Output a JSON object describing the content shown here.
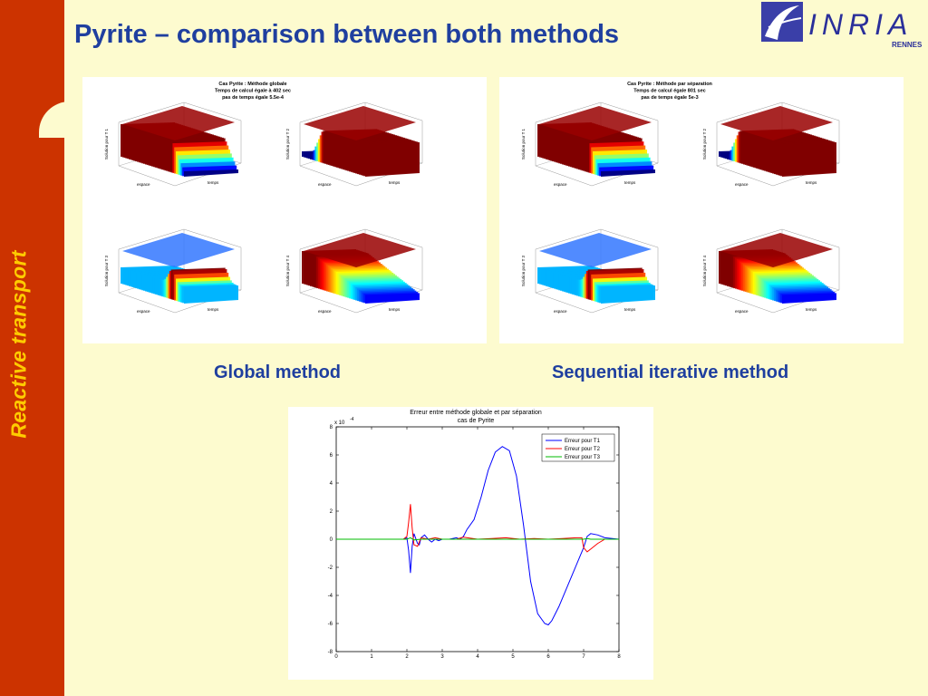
{
  "slide": {
    "title": "Pyrite – comparison between both methods",
    "sidebar_label": "Reactive transport",
    "logo_text": "INRIA",
    "logo_sub": "RENNES"
  },
  "captions": {
    "global": "Global method",
    "sequential": "Sequential iterative method"
  },
  "figures": {
    "global": {
      "title_lines": [
        "Cas Pyrite : Méthode globale",
        "Temps de calcul égale à 402 sec",
        "pas de temps égale 5.5e-4"
      ],
      "subplots": [
        "Solution pour T 1",
        "Solution pour T 2",
        "Solution pour T 3",
        "Solution pour T 4"
      ]
    },
    "sequential": {
      "title_lines": [
        "Cas Pyrite : Méthode par séparation",
        "Temps de calcul égale 801 sec",
        "pas de temps égale 5e-3"
      ],
      "subplots": [
        "Solution pour T 1",
        "Solution pour T 2",
        "Solution pour T 3",
        "Solution pour T 4"
      ]
    },
    "axis_labels": {
      "espace": "espace",
      "temps": "temps"
    }
  },
  "chart_data": {
    "type": "line",
    "title": "Erreur entre méthode globale et par séparation",
    "subtitle": "cas de Pyrite",
    "xlabel": "",
    "ylabel": "",
    "y_multiplier": "x 10",
    "y_exponent": "-4",
    "xlim": [
      0,
      8
    ],
    "ylim": [
      -8,
      8
    ],
    "xticks": [
      0,
      1,
      2,
      3,
      4,
      5,
      6,
      7,
      8
    ],
    "yticks": [
      -8,
      -6,
      -4,
      -2,
      0,
      2,
      4,
      6,
      8
    ],
    "legend_position": "top-right",
    "series": [
      {
        "name": "Erreur pour T1",
        "color": "#0000ff",
        "x": [
          0,
          1.9,
          2.0,
          2.05,
          2.1,
          2.15,
          2.2,
          2.3,
          2.35,
          2.4,
          2.5,
          2.6,
          2.7,
          2.8,
          2.9,
          3.0,
          3.2,
          3.4,
          3.5,
          3.6,
          3.7,
          3.9,
          4.1,
          4.3,
          4.5,
          4.7,
          4.9,
          5.1,
          5.3,
          5.5,
          5.7,
          5.9,
          6.0,
          6.1,
          6.3,
          6.5,
          6.7,
          6.9,
          7.0,
          7.1,
          7.2,
          7.4,
          7.6,
          8.0
        ],
        "y": [
          0,
          0,
          0.1,
          -0.8,
          -2.4,
          -0.5,
          0.4,
          -0.3,
          -0.4,
          0.1,
          0.3,
          0.0,
          -0.2,
          0.0,
          -0.1,
          0.0,
          0.0,
          0.1,
          0.0,
          0.2,
          0.7,
          1.4,
          3.0,
          4.9,
          6.2,
          6.6,
          6.3,
          4.5,
          1.0,
          -3.0,
          -5.3,
          -6.0,
          -6.1,
          -5.8,
          -4.8,
          -3.6,
          -2.4,
          -1.2,
          -0.6,
          0.2,
          0.4,
          0.3,
          0.1,
          0.0
        ]
      },
      {
        "name": "Erreur pour T2",
        "color": "#ff0000",
        "x": [
          0,
          1.9,
          2.0,
          2.05,
          2.1,
          2.15,
          2.2,
          2.3,
          2.4,
          2.6,
          2.8,
          3.0,
          3.4,
          3.6,
          4.0,
          4.4,
          4.8,
          5.2,
          5.6,
          6.0,
          6.4,
          6.8,
          6.95,
          7.0,
          7.1,
          7.2,
          7.4,
          7.6,
          8.0
        ],
        "y": [
          0,
          0,
          0.2,
          1.2,
          2.5,
          0.8,
          -0.4,
          -0.5,
          0.1,
          0.0,
          0.1,
          0.0,
          0.0,
          0.15,
          0.0,
          0.05,
          0.1,
          0.0,
          0.05,
          0.0,
          0.05,
          0.1,
          0.1,
          -0.6,
          -0.9,
          -0.7,
          -0.3,
          0.0,
          0.0
        ]
      },
      {
        "name": "Erreur pour T3",
        "color": "#00bb00",
        "x": [
          0,
          2.0,
          2.1,
          2.2,
          2.4,
          3.0,
          4.0,
          5.0,
          6.0,
          7.0,
          7.1,
          7.2,
          8.0
        ],
        "y": [
          0,
          0,
          0.1,
          -0.05,
          0.0,
          0.0,
          0.0,
          0.0,
          0.0,
          0.0,
          0.05,
          0.0,
          0.0
        ]
      }
    ]
  }
}
